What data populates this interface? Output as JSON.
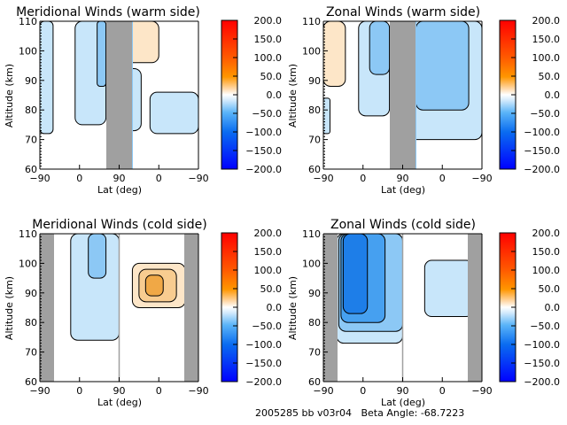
{
  "footer": "2005285 bb v03r04   Beta Angle: -68.7223",
  "colorbar": {
    "min": -200,
    "max": 200,
    "ticks": [
      "200.0",
      "150.0",
      "100.0",
      "50.0",
      "0.0",
      "-50.0",
      "-100.0",
      "-150.0",
      "-200.0"
    ],
    "stops": [
      {
        "v": 1.0,
        "c": "#ff0000"
      },
      {
        "v": 0.75,
        "c": "#ff5a00"
      },
      {
        "v": 0.62,
        "c": "#ff9600"
      },
      {
        "v": 0.54,
        "c": "#ffd9aa"
      },
      {
        "v": 0.5,
        "c": "#ffffff"
      },
      {
        "v": 0.46,
        "c": "#cfe8fc"
      },
      {
        "v": 0.38,
        "c": "#5ab4f8"
      },
      {
        "v": 0.25,
        "c": "#0a6cf0"
      },
      {
        "v": 0.0,
        "c": "#0000ff"
      }
    ]
  },
  "fill_colors": {
    "neg1": "#c8e6fa",
    "neg2": "#8cc8f5",
    "neg3": "#46a0f0",
    "neg4": "#1e7ee8",
    "pos1": "#fde6c8",
    "pos2": "#f8cc90",
    "pos3": "#f0a846",
    "mask": "#a0a0a0",
    "line": "#000000"
  },
  "chart_data": [
    {
      "type": "heatmap",
      "title": "Meridional Winds (warm side)",
      "xlabel": "Lat (deg)",
      "ylabel": "Altitude (km)",
      "xtick_labels": [
        "-90",
        "0",
        "90",
        "0",
        "-90"
      ],
      "ytick_labels": [
        "60",
        "70",
        "80",
        "90",
        "100",
        "110"
      ],
      "ylim": [
        60,
        110
      ],
      "masked_lat_band": "around 90 (ascending to descending transition)",
      "colorbar_range": [
        -200,
        200
      ],
      "regions": [
        {
          "x": [
            -90,
            -60
          ],
          "alt": [
            72,
            110
          ],
          "level": "neg1"
        },
        {
          "x": [
            -10,
            60
          ],
          "alt": [
            75,
            110
          ],
          "level": "neg1"
        },
        {
          "x": [
            40,
            60
          ],
          "alt": [
            88,
            110
          ],
          "level": "neg2"
        },
        {
          "x": [
            90,
            0
          ],
          "alt": [
            96,
            110
          ],
          "level": "pos1"
        },
        {
          "x": [
            90,
            40
          ],
          "alt": [
            73,
            94
          ],
          "level": "neg1"
        },
        {
          "x": [
            20,
            -90
          ],
          "alt": [
            72,
            86
          ],
          "level": "neg1"
        }
      ]
    },
    {
      "type": "heatmap",
      "title": "Zonal Winds (warm side)",
      "xlabel": "Lat (deg)",
      "ylabel": "Altitude (km)",
      "xtick_labels": [
        "-90",
        "0",
        "90",
        "0",
        "-90"
      ],
      "ytick_labels": [
        "60",
        "70",
        "80",
        "90",
        "100",
        "110"
      ],
      "ylim": [
        60,
        110
      ],
      "colorbar_range": [
        -200,
        200
      ],
      "regions": [
        {
          "x": [
            -90,
            -40
          ],
          "alt": [
            88,
            110
          ],
          "level": "pos1"
        },
        {
          "x": [
            -90,
            -75
          ],
          "alt": [
            72,
            84
          ],
          "level": "neg1"
        },
        {
          "x": [
            -10,
            60
          ],
          "alt": [
            78,
            110
          ],
          "level": "neg1"
        },
        {
          "x": [
            15,
            60
          ],
          "alt": [
            92,
            110
          ],
          "level": "neg2"
        },
        {
          "x": [
            90,
            -90
          ],
          "alt": [
            70,
            110
          ],
          "level": "neg1"
        },
        {
          "x": [
            60,
            -60
          ],
          "alt": [
            80,
            110
          ],
          "level": "neg2"
        }
      ]
    },
    {
      "type": "heatmap",
      "title": "Meridional Winds (cold side)",
      "xlabel": "Lat (deg)",
      "ylabel": "Altitude (km)",
      "xtick_labels": [
        "-90",
        "0",
        "90",
        "0",
        "-90"
      ],
      "ytick_labels": [
        "60",
        "70",
        "80",
        "90",
        "100",
        "110"
      ],
      "ylim": [
        60,
        110
      ],
      "colorbar_range": [
        -200,
        200
      ],
      "regions": [
        {
          "x": [
            -20,
            90
          ],
          "alt": [
            74,
            110
          ],
          "level": "neg1"
        },
        {
          "x": [
            20,
            60
          ],
          "alt": [
            95,
            110
          ],
          "level": "neg2"
        },
        {
          "x": [
            60,
            -60
          ],
          "alt": [
            85,
            100
          ],
          "level": "pos1"
        },
        {
          "x": [
            45,
            -40
          ],
          "alt": [
            87,
            98
          ],
          "level": "pos2"
        },
        {
          "x": [
            30,
            -10
          ],
          "alt": [
            89,
            96
          ],
          "level": "pos3"
        }
      ]
    },
    {
      "type": "heatmap",
      "title": "Zonal Winds (cold side)",
      "xlabel": "Lat (deg)",
      "ylabel": "Altitude (km)",
      "xtick_labels": [
        "-90",
        "0",
        "90",
        "0",
        "-90"
      ],
      "ytick_labels": [
        "60",
        "70",
        "80",
        "90",
        "100",
        "110"
      ],
      "ylim": [
        60,
        110
      ],
      "colorbar_range": [
        -200,
        200
      ],
      "regions": [
        {
          "x": [
            -60,
            90
          ],
          "alt": [
            73,
            110
          ],
          "level": "neg1"
        },
        {
          "x": [
            -55,
            90
          ],
          "alt": [
            77,
            110
          ],
          "level": "neg2"
        },
        {
          "x": [
            -50,
            50
          ],
          "alt": [
            80,
            110
          ],
          "level": "neg3"
        },
        {
          "x": [
            -45,
            10
          ],
          "alt": [
            83,
            110
          ],
          "level": "neg4"
        },
        {
          "x": [
            40,
            -70
          ],
          "alt": [
            82,
            101
          ],
          "level": "neg1"
        }
      ]
    }
  ]
}
